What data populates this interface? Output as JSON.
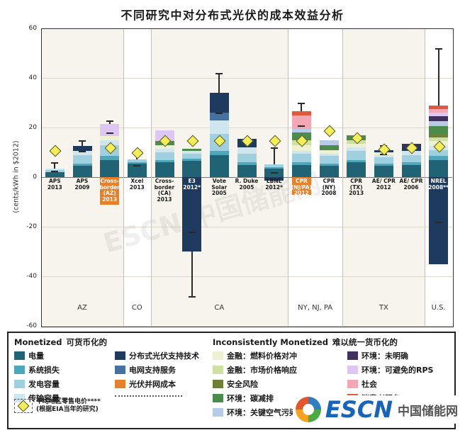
{
  "title": "不同研究中对分布式光伏的成本效益分析",
  "y_axis": {
    "label": "(cents/kWh in $2012)",
    "ticks": [
      60,
      40,
      20,
      0,
      -20,
      -40,
      -60
    ],
    "min": -60,
    "max": 60
  },
  "colors": {
    "energy": "#1f6374",
    "losses": "#4da7b8",
    "gen_capacity": "#9ed0e0",
    "trans_capacity": "#cfe6ee",
    "dpv_support": "#1e3a5f",
    "grid_support": "#4472a3",
    "pv_interconnect": "#e87f2a",
    "fuel_hedge": "#eef0d2",
    "market_response": "#cfe0a2",
    "security": "#6f7f33",
    "carbon": "#4c8c4a",
    "air_pollutants": "#b7cbe9",
    "env_other": "#40305e",
    "rps": "#ddc7f2",
    "social": "#f3a6b4",
    "consumer": "#e0593c",
    "diamond": "#f2ee58"
  },
  "chart_style": {
    "band_colors": [
      "#f7f4ed",
      "#ffffff"
    ],
    "grid_color": "#ddd8cd",
    "zero_color": "#777777",
    "separator_color": "#c5c1b6",
    "error_color": "#2a2a2a"
  },
  "chart_data": {
    "type": "bar",
    "stacked": true,
    "unit": "cents/kWh in $2012",
    "ylim": [
      -60,
      60
    ],
    "diamond_meaning": "平均地区零售电价 (根据EIA当年的研究)",
    "regions": [
      {
        "name": "AZ",
        "bars": 3
      },
      {
        "name": "CO",
        "bars": 1
      },
      {
        "name": "CA",
        "bars": 5
      },
      {
        "name": "NY, NJ, PA",
        "bars": 2
      },
      {
        "name": "TX",
        "bars": 3
      },
      {
        "name": "U.S.",
        "bars": 1
      }
    ],
    "bars": [
      {
        "label": "APS 2013",
        "stack": [
          [
            "energy",
            2.0
          ],
          [
            "gen_capacity",
            0.9
          ],
          [
            "trans_capacity",
            0.4
          ]
        ],
        "neg": [],
        "error": [
          2.5,
          6.0
        ],
        "diamond": 11,
        "light_label": false
      },
      {
        "label": "APS 2009",
        "stack": [
          [
            "energy",
            4.5
          ],
          [
            "losses",
            1.0
          ],
          [
            "gen_capacity",
            3.5
          ],
          [
            "trans_capacity",
            1.5
          ],
          [
            "dpv_support",
            2.0
          ]
        ],
        "neg": [],
        "error": [
          10.5,
          15.0
        ],
        "diamond": null,
        "light_label": false
      },
      {
        "label": "Cross-border (AZ) 2013",
        "stack": [
          [
            "energy",
            7.0
          ],
          [
            "losses",
            1.5
          ],
          [
            "gen_capacity",
            4.5
          ],
          [
            "trans_capacity",
            2.0
          ],
          [
            "fuel_hedge",
            1.5
          ],
          [
            "rps",
            5.0
          ]
        ],
        "neg": [
          [
            "pv_interconnect",
            -11.0
          ]
        ],
        "error": [
          18.0,
          23.0
        ],
        "diamond": 12,
        "light_label": true
      },
      {
        "label": "Xcel 2013",
        "stack": [
          [
            "energy",
            5.5
          ],
          [
            "losses",
            0.6
          ],
          [
            "gen_capacity",
            1.0
          ]
        ],
        "neg": [],
        "error": [
          5.0,
          10.0
        ],
        "diamond": 10,
        "light_label": false
      },
      {
        "label": "Cross-border (CA) 2013",
        "stack": [
          [
            "energy",
            6.0
          ],
          [
            "losses",
            1.0
          ],
          [
            "gen_capacity",
            3.0
          ],
          [
            "trans_capacity",
            1.5
          ],
          [
            "fuel_hedge",
            1.5
          ],
          [
            "carbon",
            1.5
          ],
          [
            "rps",
            4.5
          ]
        ],
        "neg": [],
        "error": null,
        "diamond": 15,
        "light_label": false
      },
      {
        "label": "E3 2012*",
        "stack": [
          [
            "energy",
            6.5
          ],
          [
            "losses",
            1.0
          ],
          [
            "gen_capacity",
            2.0
          ],
          [
            "trans_capacity",
            1.0
          ],
          [
            "carbon",
            1.0
          ]
        ],
        "neg": [
          [
            "dpv_support",
            -30.0
          ]
        ],
        "error": [
          -48.0,
          -22.0
        ],
        "diamond": 15,
        "light_label": true
      },
      {
        "label": "Vote Solar 2005",
        "stack": [
          [
            "energy",
            9.0
          ],
          [
            "losses",
            1.5
          ],
          [
            "gen_capacity",
            7.0
          ],
          [
            "trans_capacity",
            5.5
          ],
          [
            "grid_support",
            3.0
          ],
          [
            "dpv_support",
            8.0
          ]
        ],
        "neg": [],
        "error": [
          26.0,
          42.0
        ],
        "diamond": 15,
        "light_label": false
      },
      {
        "label": "R. Duke 2005",
        "stack": [
          [
            "energy",
            5.0
          ],
          [
            "losses",
            1.0
          ],
          [
            "gen_capacity",
            3.5
          ],
          [
            "trans_capacity",
            2.5
          ],
          [
            "dpv_support",
            3.5
          ]
        ],
        "neg": [],
        "error": null,
        "diamond": 15,
        "light_label": false
      },
      {
        "label": "LBNL 2012*",
        "stack": [
          [
            "energy",
            3.5
          ],
          [
            "losses",
            0.5
          ],
          [
            "gen_capacity",
            1.2
          ]
        ],
        "neg": [
          [
            "dpv_support",
            -1.5
          ]
        ],
        "error": [
          2.0,
          12.0
        ],
        "diamond": 15,
        "light_label": false
      },
      {
        "label": "CPR (NJ/PA) 2012",
        "stack": [
          [
            "energy",
            5.0
          ],
          [
            "losses",
            1.0
          ],
          [
            "gen_capacity",
            3.5
          ],
          [
            "trans_capacity",
            1.0
          ],
          [
            "fuel_hedge",
            2.5
          ],
          [
            "market_response",
            2.0
          ],
          [
            "carbon",
            3.0
          ],
          [
            "air_pollutants",
            1.5
          ],
          [
            "social",
            5.5
          ],
          [
            "consumer",
            1.5
          ]
        ],
        "neg": [
          [
            "pv_interconnect",
            -7.0
          ]
        ],
        "error": [
          21.0,
          30.0
        ],
        "diamond": 15,
        "light_label": true
      },
      {
        "label": "CPR (NY) 2008",
        "stack": [
          [
            "energy",
            4.5
          ],
          [
            "losses",
            1.0
          ],
          [
            "gen_capacity",
            3.0
          ],
          [
            "trans_capacity",
            1.0
          ],
          [
            "fuel_hedge",
            1.5
          ],
          [
            "carbon",
            2.0
          ],
          [
            "air_pollutants",
            2.0
          ]
        ],
        "neg": [],
        "error": null,
        "diamond": 19,
        "light_label": false
      },
      {
        "label": "CPR (TX) 2013",
        "stack": [
          [
            "energy",
            6.0
          ],
          [
            "losses",
            1.0
          ],
          [
            "gen_capacity",
            3.5
          ],
          [
            "trans_capacity",
            1.5
          ],
          [
            "fuel_hedge",
            1.5
          ],
          [
            "market_response",
            1.5
          ],
          [
            "carbon",
            2.0
          ]
        ],
        "neg": [],
        "error": null,
        "diamond": 16,
        "light_label": false
      },
      {
        "label": "AE/ CPR 2012",
        "stack": [
          [
            "energy",
            4.5
          ],
          [
            "losses",
            1.0
          ],
          [
            "gen_capacity",
            2.5
          ],
          [
            "trans_capacity",
            1.0
          ],
          [
            "fuel_hedge",
            1.0
          ],
          [
            "dpv_support",
            1.0
          ]
        ],
        "neg": [],
        "error": [
          9.5,
          13.0
        ],
        "diamond": 11.5,
        "light_label": false
      },
      {
        "label": "AE/ CPR 2006",
        "stack": [
          [
            "energy",
            5.0
          ],
          [
            "losses",
            1.0
          ],
          [
            "gen_capacity",
            3.0
          ],
          [
            "trans_capacity",
            1.5
          ],
          [
            "dpv_support",
            2.5
          ],
          [
            "env_other",
            0.5
          ]
        ],
        "neg": [],
        "error": null,
        "diamond": 12,
        "light_label": false
      },
      {
        "label": "NREL 2008**",
        "stack": [
          [
            "energy",
            7.0
          ],
          [
            "losses",
            1.5
          ],
          [
            "gen_capacity",
            2.5
          ],
          [
            "trans_capacity",
            1.5
          ],
          [
            "fuel_hedge",
            2.0
          ],
          [
            "market_response",
            1.5
          ],
          [
            "security",
            1.5
          ],
          [
            "carbon",
            3.0
          ],
          [
            "air_pollutants",
            2.0
          ],
          [
            "env_other",
            2.0
          ],
          [
            "rps",
            1.5
          ],
          [
            "social",
            1.5
          ],
          [
            "consumer",
            1.5
          ]
        ],
        "neg": [
          [
            "dpv_support",
            -35.0
          ]
        ],
        "error": [
          -18.0,
          52.0
        ],
        "diamond": 12.5,
        "light_label": true
      }
    ]
  },
  "legend": {
    "monetized": "Monetized",
    "monetized_zh": "可货币化的",
    "inconsistent": "Inconsistently Monetized",
    "inconsistent_zh": "难以统一货币化的",
    "col1": [
      {
        "key": "energy",
        "label": "电量"
      },
      {
        "key": "losses",
        "label": "系统损失"
      },
      {
        "key": "gen_capacity",
        "label": "发电容量"
      },
      {
        "key": "trans_capacity",
        "label": "传输容量"
      }
    ],
    "col2": [
      {
        "key": "dpv_support",
        "label": "分布式光伏支持技术"
      },
      {
        "key": "grid_support",
        "label": "电网支持服务"
      },
      {
        "key": "pv_interconnect",
        "label": "光伏并网成本"
      }
    ],
    "col3": [
      {
        "key": "fuel_hedge",
        "label": "金融：燃料价格对冲"
      },
      {
        "key": "market_response",
        "label": "金融：市场价格响应"
      },
      {
        "key": "security",
        "label": "安全风险"
      },
      {
        "key": "carbon",
        "label": "环境：碳减排"
      },
      {
        "key": "air_pollutants",
        "label": "环境：关键空气污染物"
      }
    ],
    "col4": [
      {
        "key": "env_other",
        "label": "环境：未明确"
      },
      {
        "key": "rps",
        "label": "环境：可避免的RPS"
      },
      {
        "key": "social",
        "label": "社会"
      },
      {
        "key": "consumer",
        "label": "消费者服务"
      }
    ],
    "diamond_item": {
      "line1": "平均地区零售电价****",
      "line2": "(根据EIA当年的研究)"
    }
  },
  "logo": {
    "name": "ESCN",
    "cn": "中国储能网",
    "text_color": "#1565bd",
    "wheel_colors": [
      "#2e7fc1",
      "#49a942",
      "#f6a21d",
      "#e1562c"
    ]
  },
  "watermark": "ESCN 中国储能网"
}
